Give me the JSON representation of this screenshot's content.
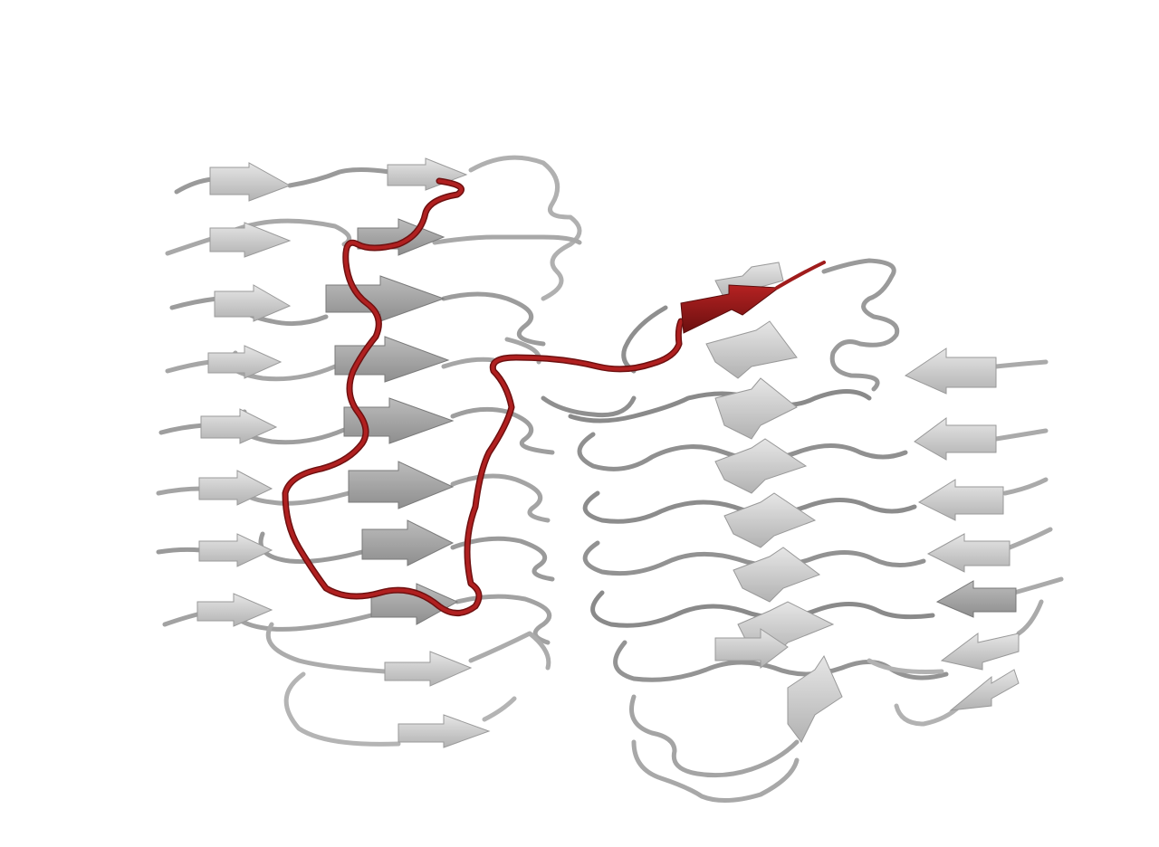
{
  "scene": {
    "background": "#ffffff",
    "representation": "cartoon",
    "colors": {
      "strand_light": "#d4d4d4",
      "strand_mid": "#b5b5b5",
      "strand_dark": "#8a8a8a",
      "coil_light": "#cfcfcf",
      "coil_dark": "#8f8f8f",
      "highlight": "#a01c1c",
      "highlight_dark": "#6e1010"
    },
    "icons": [
      "beta-strand-arrow",
      "coil-tube"
    ]
  }
}
